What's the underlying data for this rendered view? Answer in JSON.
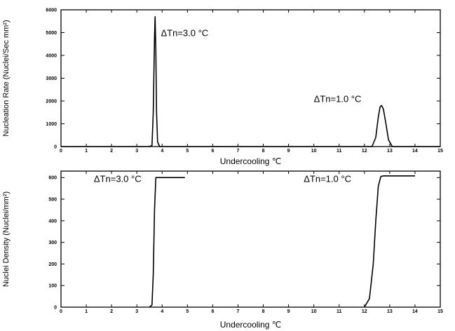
{
  "chart_data": [
    {
      "type": "line",
      "xlabel": "Undercooling ℃",
      "ylabel": "Nucleation Rate (Nuclei/Sec mm²)",
      "xlim": [
        0,
        15
      ],
      "ylim": [
        0,
        6000
      ],
      "xticks": [
        "0",
        "1",
        "2",
        "3",
        "4",
        "5",
        "6",
        "7",
        "8",
        "9",
        "10",
        "11",
        "12",
        "13",
        "14",
        "15"
      ],
      "yticks": [
        "0",
        "1000",
        "2000",
        "3000",
        "4000",
        "5000",
        "6000"
      ],
      "grid": false,
      "series": [
        {
          "x": [
            0,
            3.5,
            3.6,
            3.65,
            3.7,
            3.72,
            3.75,
            3.78,
            3.82,
            3.9,
            12,
            12.3,
            12.45,
            12.55,
            12.62,
            12.68,
            12.75,
            12.85,
            12.95,
            13.1,
            15
          ],
          "y": [
            0,
            0,
            50,
            1500,
            4800,
            5700,
            4200,
            1500,
            200,
            0,
            0,
            0,
            400,
            1300,
            1750,
            1800,
            1650,
            1000,
            300,
            0,
            0
          ]
        }
      ],
      "annotations": [
        {
          "text": "ΔTn=3.0 °C",
          "x": 3.95,
          "y": 4850
        },
        {
          "text": "ΔTn=1.0 °C",
          "x": 10.0,
          "y": 1950
        }
      ]
    },
    {
      "type": "line",
      "xlabel": "Undercooling ℃",
      "ylabel": "Nuclei Density (Nuclei/mm²)",
      "xlim": [
        0,
        15
      ],
      "ylim": [
        0,
        630
      ],
      "xticks": [
        "0",
        "1",
        "2",
        "3",
        "4",
        "5",
        "6",
        "7",
        "8",
        "9",
        "10",
        "11",
        "12",
        "13",
        "14",
        "15"
      ],
      "yticks": [
        "0",
        "100",
        "200",
        "300",
        "400",
        "500",
        "600"
      ],
      "grid": false,
      "series": [
        {
          "x": [
            3.5,
            3.6,
            3.65,
            3.7,
            3.75,
            3.8,
            4.9
          ],
          "y": [
            0,
            10,
            150,
            450,
            600,
            600,
            600
          ]
        },
        {
          "x": [
            12,
            12.2,
            12.35,
            12.45,
            12.55,
            12.65,
            12.75,
            14
          ],
          "y": [
            0,
            40,
            200,
            400,
            560,
            605,
            608,
            608
          ]
        }
      ],
      "annotations": [
        {
          "text": "ΔTn=3.0 °C",
          "x": 1.3,
          "y": 580
        },
        {
          "text": "ΔTn=1.0 °C",
          "x": 9.6,
          "y": 580
        }
      ]
    }
  ]
}
